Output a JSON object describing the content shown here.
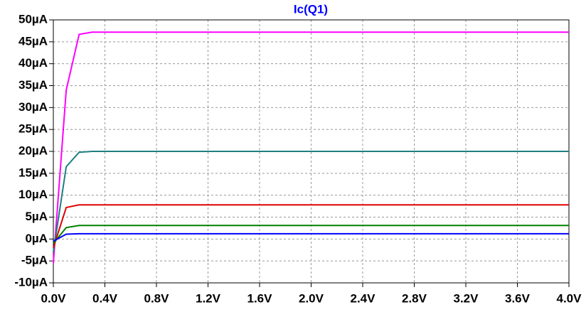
{
  "chart_data": {
    "type": "line",
    "title": "Ic(Q1)",
    "x": [
      0,
      0.1,
      0.2,
      0.3,
      4.0
    ],
    "series": [
      {
        "color": "#ff00ff",
        "values": [
          -5.5,
          34,
          46.7,
          47.2,
          47.2
        ]
      },
      {
        "color": "#1f7f7f",
        "values": [
          -3,
          16.5,
          19.8,
          20,
          20
        ]
      },
      {
        "color": "#e00000",
        "values": [
          -2,
          7.2,
          7.8,
          7.8,
          7.8
        ]
      },
      {
        "color": "#008000",
        "values": [
          -1,
          2.6,
          3.1,
          3.1,
          3.1
        ]
      },
      {
        "color": "#0000ff",
        "values": [
          -0.5,
          1.1,
          1.2,
          1.2,
          1.2
        ]
      }
    ],
    "xlim": [
      0,
      4.0
    ],
    "xticks": [
      {
        "value": 0,
        "label": "0.0V"
      },
      {
        "value": 0.4,
        "label": "0.4V"
      },
      {
        "value": 0.8,
        "label": "0.8V"
      },
      {
        "value": 1.2,
        "label": "1.2V"
      },
      {
        "value": 1.6,
        "label": "1.6V"
      },
      {
        "value": 2.0,
        "label": "2.0V"
      },
      {
        "value": 2.4,
        "label": "2.4V"
      },
      {
        "value": 2.8,
        "label": "2.8V"
      },
      {
        "value": 3.2,
        "label": "3.2V"
      },
      {
        "value": 3.6,
        "label": "3.6V"
      },
      {
        "value": 4.0,
        "label": "4.0V"
      }
    ],
    "ylim": [
      -10,
      50
    ],
    "yticks": [
      {
        "value": -10,
        "label": "-10µA"
      },
      {
        "value": -5,
        "label": "-5µA"
      },
      {
        "value": 0,
        "label": "0µA"
      },
      {
        "value": 5,
        "label": "5µA"
      },
      {
        "value": 10,
        "label": "10µA"
      },
      {
        "value": 15,
        "label": "15µA"
      },
      {
        "value": 20,
        "label": "20µA"
      },
      {
        "value": 25,
        "label": "25µA"
      },
      {
        "value": 30,
        "label": "30µA"
      },
      {
        "value": 35,
        "label": "35µA"
      },
      {
        "value": 40,
        "label": "40µA"
      },
      {
        "value": 45,
        "label": "45µA"
      },
      {
        "value": 50,
        "label": "50µA"
      }
    ],
    "grid": true
  }
}
